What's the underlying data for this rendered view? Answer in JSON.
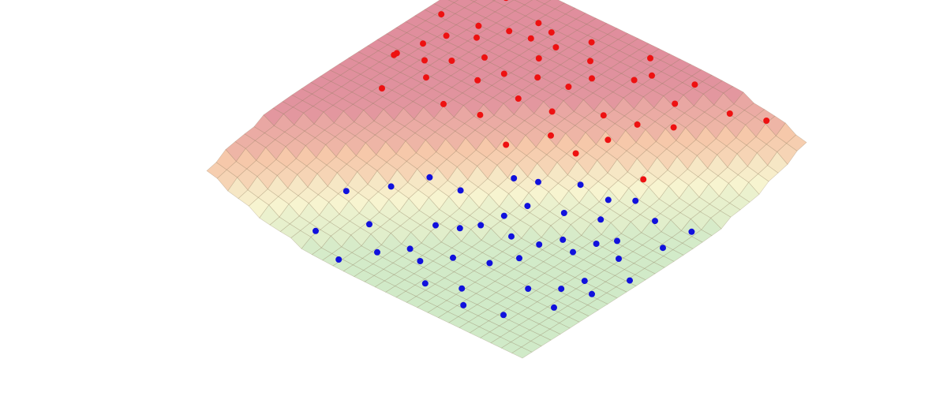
{
  "chart_data": {
    "type": "scatter3d",
    "xlim": [
      0,
      1
    ],
    "ylim": [
      0,
      1
    ],
    "series": [
      {
        "color": "#ee1111",
        "x": [
          0.55,
          0.6,
          0.62,
          0.65,
          0.7,
          0.72,
          0.75,
          0.78,
          0.8,
          0.82,
          0.85,
          0.88,
          0.9,
          0.92,
          0.95,
          0.58,
          0.63,
          0.68,
          0.73,
          0.77,
          0.83,
          0.87,
          0.91,
          0.66,
          0.71,
          0.76,
          0.81,
          0.86,
          0.93,
          0.97,
          0.5,
          0.54,
          0.6,
          0.64,
          0.69,
          0.74,
          0.79,
          0.84,
          0.89,
          0.94,
          0.45,
          0.52,
          0.57,
          0.61,
          0.67
        ],
        "values": [
          0.2,
          0.15,
          0.3,
          0.1,
          0.25,
          0.4,
          0.18,
          0.35,
          0.5,
          0.22,
          0.45,
          0.3,
          0.6,
          0.12,
          0.55,
          0.08,
          0.42,
          0.33,
          0.6,
          0.05,
          0.28,
          0.7,
          0.4,
          0.5,
          0.12,
          0.68,
          0.75,
          0.58,
          0.82,
          0.9,
          0.3,
          0.38,
          0.55,
          0.2,
          0.65,
          0.48,
          0.15,
          0.35,
          0.25,
          0.7,
          0.15,
          0.48,
          0.08,
          0.62,
          0.78
        ]
      },
      {
        "color": "#1111dd",
        "x": [
          0.05,
          0.1,
          0.15,
          0.2,
          0.25,
          0.3,
          0.35,
          0.4,
          0.45,
          0.5,
          0.55,
          0.6,
          0.12,
          0.18,
          0.22,
          0.28,
          0.33,
          0.38,
          0.42,
          0.48,
          0.08,
          0.14,
          0.26,
          0.36,
          0.44,
          0.52,
          0.58,
          0.3,
          0.2,
          0.1,
          0.4,
          0.5,
          0.34,
          0.24,
          0.16,
          0.46,
          0.56,
          0.62,
          0.64,
          0.02,
          0.07,
          0.27,
          0.37,
          0.47,
          0.32
        ],
        "values": [
          0.3,
          0.45,
          0.38,
          0.6,
          0.5,
          0.72,
          0.65,
          0.8,
          0.9,
          0.85,
          0.95,
          0.88,
          0.7,
          0.28,
          0.82,
          0.55,
          0.9,
          0.6,
          0.75,
          0.7,
          0.62,
          0.55,
          0.35,
          0.48,
          0.62,
          0.78,
          0.75,
          0.95,
          0.92,
          0.85,
          0.98,
          0.6,
          0.4,
          0.68,
          0.5,
          0.82,
          0.68,
          0.8,
          0.96,
          0.4,
          0.75,
          0.88,
          0.72,
          0.55,
          0.58
        ]
      }
    ]
  }
}
